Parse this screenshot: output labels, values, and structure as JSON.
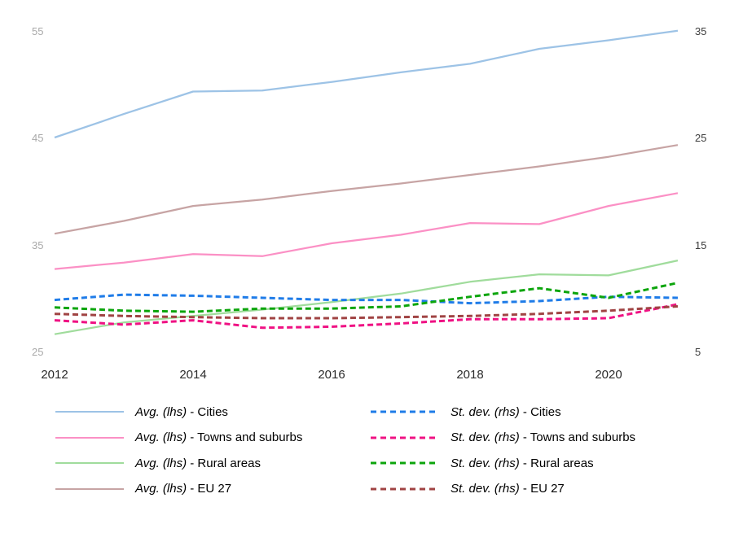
{
  "chart_data": {
    "type": "line",
    "title": "",
    "grid": false,
    "x": [
      2012,
      2013,
      2014,
      2015,
      2016,
      2017,
      2018,
      2019,
      2020,
      2021
    ],
    "x_tick_labels": [
      "2012",
      "2014",
      "2016",
      "2018",
      "2020"
    ],
    "left_axis": {
      "ticks": [
        "25",
        "35",
        "45",
        "55"
      ],
      "range": [
        25,
        55
      ],
      "label_color": "#a9a9a9"
    },
    "right_axis": {
      "ticks": [
        "5",
        "15",
        "25",
        "35"
      ],
      "range": [
        5,
        35
      ],
      "label_color": "#3c3c3c"
    },
    "series": [
      {
        "name": "Avg. (lhs) - Cities",
        "legend_prefix": "Avg. (lhs)",
        "legend_label": "- Cities",
        "axis": "lhs",
        "style": "solid",
        "color": "#9dc3e6",
        "values": [
          45.1,
          47.3,
          49.4,
          49.5,
          50.3,
          51.2,
          52.0,
          53.4,
          54.2,
          55.1
        ]
      },
      {
        "name": "Avg. (lhs) - Towns and suburbs",
        "legend_prefix": "Avg. (lhs)",
        "legend_label": "- Towns and suburbs",
        "axis": "lhs",
        "style": "solid",
        "color": "#fb90c5",
        "values": [
          32.8,
          33.4,
          34.2,
          34.0,
          35.2,
          36.0,
          37.1,
          37.0,
          38.7,
          39.9
        ]
      },
      {
        "name": "Avg. (lhs) - Rural areas",
        "legend_prefix": "Avg. (lhs)",
        "legend_label": "- Rural areas",
        "axis": "lhs",
        "style": "solid",
        "color": "#a0dc9c",
        "values": [
          26.7,
          27.8,
          28.4,
          29.0,
          29.7,
          30.5,
          31.6,
          32.3,
          32.2,
          33.6
        ]
      },
      {
        "name": "Avg. (lhs) - EU 27",
        "legend_prefix": "Avg. (lhs)",
        "legend_label": "- EU 27",
        "axis": "lhs",
        "style": "solid",
        "color": "#c7a4a4",
        "values": [
          36.1,
          37.3,
          38.7,
          39.3,
          40.1,
          40.8,
          41.6,
          42.4,
          43.3,
          44.4
        ]
      },
      {
        "name": "St. dev. (rhs) - Cities",
        "legend_prefix": "St. dev. (rhs)",
        "legend_label": "- Cities",
        "axis": "rhs",
        "style": "dashed",
        "color": "#1f7ce8",
        "values": [
          9.9,
          10.4,
          10.3,
          10.1,
          9.9,
          9.9,
          9.6,
          9.8,
          10.2,
          10.1
        ]
      },
      {
        "name": "St. dev. (rhs) - Towns and suburbs",
        "legend_prefix": "St. dev. (rhs)",
        "legend_label": "- Towns and suburbs",
        "axis": "rhs",
        "style": "dashed",
        "color": "#ef1183",
        "values": [
          8.0,
          7.6,
          8.0,
          7.3,
          7.4,
          7.7,
          8.1,
          8.1,
          8.2,
          9.5
        ]
      },
      {
        "name": "St. dev. (rhs) - Rural areas",
        "legend_prefix": "St. dev. (rhs)",
        "legend_label": "- Rural areas",
        "axis": "rhs",
        "style": "dashed",
        "color": "#0ca50c",
        "values": [
          9.2,
          8.9,
          8.8,
          9.1,
          9.1,
          9.3,
          10.2,
          11.0,
          10.1,
          11.5
        ]
      },
      {
        "name": "St. dev. (rhs) - EU 27",
        "legend_prefix": "St. dev. (rhs)",
        "legend_label": "- EU 27",
        "axis": "rhs",
        "style": "dashed",
        "color": "#a04343",
        "values": [
          8.6,
          8.4,
          8.3,
          8.2,
          8.2,
          8.3,
          8.4,
          8.6,
          8.9,
          9.3
        ]
      }
    ],
    "legend_position": "bottom-two-columns"
  }
}
